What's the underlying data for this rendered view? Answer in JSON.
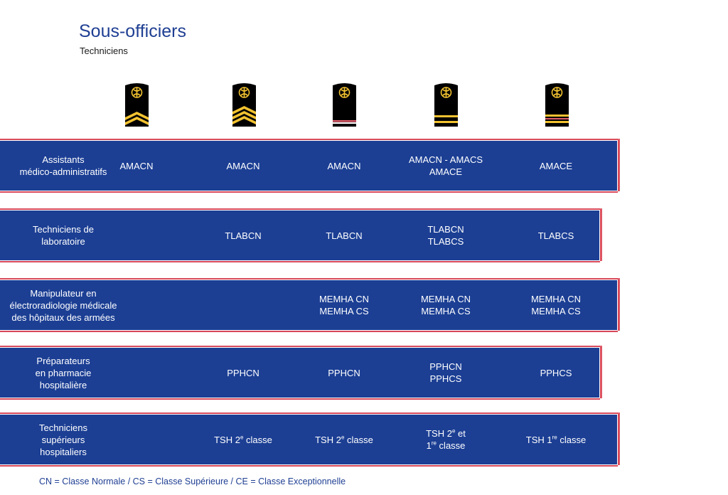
{
  "title": "Sous-officiers",
  "subtitle": "Techniciens",
  "insignia": [
    {
      "name": "rank-insignia-1",
      "stripes": "two-gold-chevrons"
    },
    {
      "name": "rank-insignia-2",
      "stripes": "three-gold-chevrons"
    },
    {
      "name": "rank-insignia-3",
      "stripes": "red-white-bar"
    },
    {
      "name": "rank-insignia-4",
      "stripes": "two-gold-bars"
    },
    {
      "name": "rank-insignia-5",
      "stripes": "gold-red-gold-bars"
    }
  ],
  "colors": {
    "band": "#1c3f94",
    "band_border": "#d7495a",
    "title": "#1f3f93",
    "gold": "#f2c230"
  },
  "rows": [
    {
      "label": "Assistants\nmédico-administratifs",
      "cells": [
        "AMACN",
        "AMACN",
        "AMACN",
        "AMACN - AMACS\nAMACE",
        "AMACE"
      ]
    },
    {
      "label": "Techniciens de\nlaboratoire",
      "cells": [
        "",
        "TLABCN",
        "TLABCN",
        "TLABCN\nTLABCS",
        "TLABCS"
      ]
    },
    {
      "label": "Manipulateur en\nélectroradiologie médicale\ndes hôpitaux des armées",
      "cells": [
        "",
        "",
        "MEMHA CN\nMEMHA CS",
        "MEMHA CN\nMEMHA CS",
        "MEMHA CN\nMEMHA CS"
      ]
    },
    {
      "label": "Préparateurs\nen pharmacie\nhospitalière",
      "cells": [
        "",
        "PPHCN",
        "PPHCN",
        "PPHCN\nPPHCS",
        "PPHCS"
      ]
    },
    {
      "label": "Techniciens\nsupérieurs\nhospitaliers",
      "cells": [
        "",
        "TSH 2e classe",
        "TSH 2e classe",
        "TSH 2e et\n1re classe",
        "TSH 1re classe"
      ]
    }
  ],
  "legend": "CN = Classe Normale  / CS = Classe Supérieure  / CE = Classe Exceptionnelle"
}
